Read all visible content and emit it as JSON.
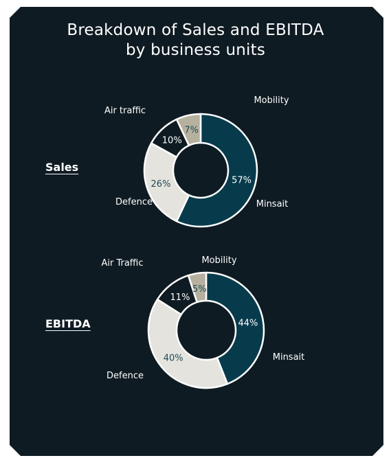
{
  "title": [
    "Breakdown of Sales and EBITDA",
    "by business units"
  ],
  "colors": {
    "background": "#0f1b22",
    "Minsait": "#073b4c",
    "Defence": "#e4e3dd",
    "Air traffic": "#0f1b22",
    "Mobility": "#b6b19e"
  },
  "chart_data": [
    {
      "type": "pie",
      "label": "Sales",
      "categories": [
        "Minsait",
        "Defence",
        "Air traffic",
        "Mobility"
      ],
      "values": [
        57,
        26,
        10,
        7
      ],
      "value_labels": [
        "57%",
        "26%",
        "10%",
        "7%"
      ]
    },
    {
      "type": "pie",
      "label": "EBITDA",
      "categories": [
        "Minsait",
        "Defence",
        "Air Traffic",
        "Mobility"
      ],
      "values": [
        44,
        40,
        11,
        5
      ],
      "value_labels": [
        "44%",
        "40%",
        "11%",
        "5%"
      ]
    }
  ]
}
